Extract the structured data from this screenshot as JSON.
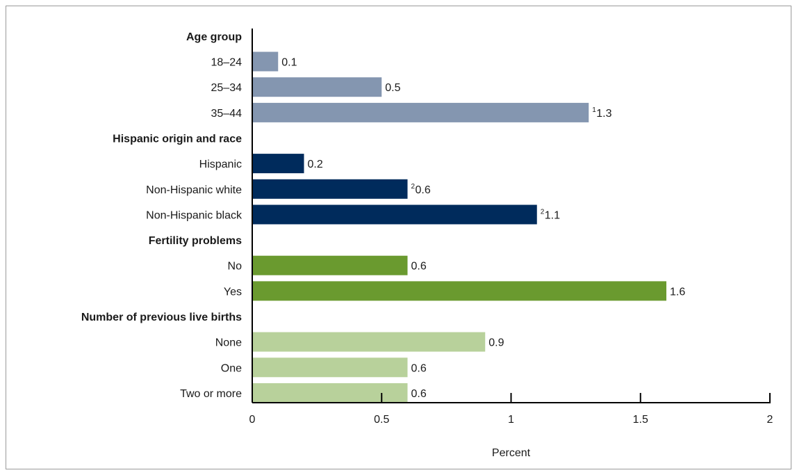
{
  "chart_data": {
    "type": "bar",
    "orientation": "horizontal",
    "xlabel": "Percent",
    "xlim": [
      0,
      2
    ],
    "xticks": [
      0,
      0.5,
      1,
      1.5,
      2
    ],
    "xtick_labels": [
      "0",
      "0.5",
      "1",
      "1.5",
      "2"
    ],
    "grid": false,
    "groups": [
      {
        "label": "Age group",
        "color": "#8496b0",
        "items": [
          {
            "label": "18–24",
            "value": 0.1,
            "value_label": "0.1",
            "note": ""
          },
          {
            "label": "25–34",
            "value": 0.5,
            "value_label": "0.5",
            "note": ""
          },
          {
            "label": "35–44",
            "value": 1.3,
            "value_label": "1.3",
            "note": "1"
          }
        ]
      },
      {
        "label": "Hispanic origin and race",
        "color": "#002b5c",
        "items": [
          {
            "label": "Hispanic",
            "value": 0.2,
            "value_label": "0.2",
            "note": ""
          },
          {
            "label": "Non-Hispanic white",
            "value": 0.6,
            "value_label": "0.6",
            "note": "2"
          },
          {
            "label": "Non-Hispanic black",
            "value": 1.1,
            "value_label": "1.1",
            "note": "2"
          }
        ]
      },
      {
        "label": "Fertility problems",
        "color": "#6a9a2f",
        "items": [
          {
            "label": "No",
            "value": 0.6,
            "value_label": "0.6",
            "note": ""
          },
          {
            "label": "Yes",
            "value": 1.6,
            "value_label": "1.6",
            "note": ""
          }
        ]
      },
      {
        "label": "Number of previous live births",
        "color": "#b8d19b",
        "items": [
          {
            "label": "None",
            "value": 0.9,
            "value_label": "0.9",
            "note": ""
          },
          {
            "label": "One",
            "value": 0.6,
            "value_label": "0.6",
            "note": ""
          },
          {
            "label": "Two or more",
            "value": 0.6,
            "value_label": "0.6",
            "note": ""
          }
        ]
      }
    ]
  }
}
